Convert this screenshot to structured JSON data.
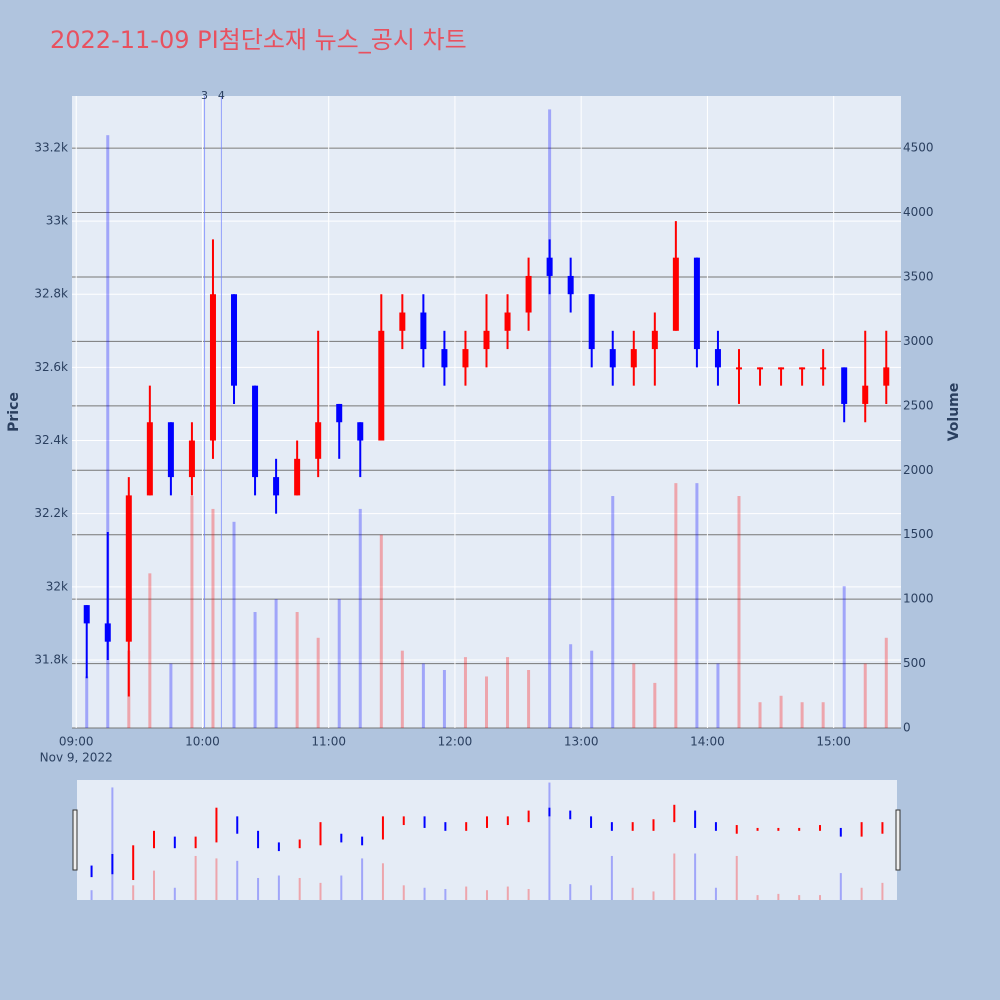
{
  "chart_data": {
    "type": "candlestick",
    "title": "2022-11-09 PI첨단소재 뉴스_공시 차트",
    "ylabel": "Price",
    "y2label": "Volume",
    "x": [
      "09:00",
      "09:10",
      "09:20",
      "09:30",
      "09:40",
      "09:50",
      "10:00",
      "10:10",
      "10:20",
      "10:30",
      "10:40",
      "10:50",
      "11:00",
      "11:10",
      "11:20",
      "11:30",
      "11:40",
      "11:50",
      "12:00",
      "12:10",
      "12:20",
      "12:30",
      "12:40",
      "12:50",
      "13:00",
      "13:10",
      "13:20",
      "13:30",
      "13:40",
      "13:50",
      "14:00",
      "14:10",
      "14:20",
      "14:30",
      "14:40",
      "14:50",
      "15:00",
      "15:10",
      "15:20"
    ],
    "open": [
      31950,
      31900,
      31850,
      32250,
      32450,
      32300,
      32400,
      32800,
      32550,
      32300,
      32250,
      32350,
      32500,
      32450,
      32400,
      32700,
      32750,
      32650,
      32600,
      32650,
      32700,
      32750,
      32900,
      32850,
      32800,
      32650,
      32600,
      32650,
      32700,
      32900,
      32650,
      32600,
      32600,
      32600,
      32600,
      32600,
      32600,
      32500,
      32550
    ],
    "high": [
      31950,
      32150,
      32300,
      32550,
      32450,
      32450,
      32950,
      32800,
      32550,
      32350,
      32400,
      32700,
      32500,
      32450,
      32800,
      32800,
      32800,
      32700,
      32700,
      32800,
      32800,
      32900,
      32950,
      32900,
      32800,
      32700,
      32700,
      32750,
      33000,
      32900,
      32700,
      32650,
      32600,
      32600,
      32600,
      32650,
      32600,
      32700,
      32700
    ],
    "low": [
      31750,
      31800,
      31700,
      32250,
      32250,
      32250,
      32350,
      32500,
      32250,
      32200,
      32250,
      32300,
      32350,
      32300,
      32400,
      32650,
      32600,
      32550,
      32550,
      32600,
      32650,
      32700,
      32800,
      32750,
      32600,
      32550,
      32550,
      32550,
      32700,
      32600,
      32550,
      32500,
      32550,
      32550,
      32550,
      32550,
      32450,
      32450,
      32500
    ],
    "close": [
      31900,
      31850,
      32250,
      32450,
      32300,
      32400,
      32800,
      32550,
      32300,
      32250,
      32350,
      32450,
      32450,
      32400,
      32700,
      32750,
      32650,
      32600,
      32650,
      32700,
      32750,
      32850,
      32850,
      32800,
      32650,
      32600,
      32650,
      32700,
      32900,
      32650,
      32600,
      32600,
      32600,
      32600,
      32600,
      32600,
      32500,
      32550,
      32600
    ],
    "volume": [
      400,
      4600,
      600,
      1200,
      500,
      1800,
      1700,
      1600,
      900,
      1000,
      900,
      700,
      1000,
      1700,
      1500,
      600,
      500,
      450,
      550,
      400,
      550,
      450,
      4800,
      650,
      600,
      1800,
      500,
      350,
      1900,
      1900,
      500,
      1800,
      200,
      250,
      200,
      200,
      1100,
      500,
      700
    ],
    "up_color": "#ff0000",
    "down_color": "#0000ff",
    "xlim": [
      "08:58",
      "15:32"
    ],
    "xticks": [
      "09:00",
      "10:00",
      "11:00",
      "12:00",
      "13:00",
      "14:00",
      "15:00"
    ],
    "x_date_label": "Nov 9, 2022",
    "ylim": [
      31614,
      33342
    ],
    "yticks": [
      {
        "value": 31800,
        "label": "31.8k"
      },
      {
        "value": 32000,
        "label": "32k"
      },
      {
        "value": 32200,
        "label": "32.2k"
      },
      {
        "value": 32400,
        "label": "32.4k"
      },
      {
        "value": 32600,
        "label": "32.6k"
      },
      {
        "value": 32800,
        "label": "32.8k"
      },
      {
        "value": 33000,
        "label": "33k"
      },
      {
        "value": 33200,
        "label": "33.2k"
      }
    ],
    "y2lim": [
      0,
      4904
    ],
    "y2ticks": [
      0,
      500,
      1000,
      1500,
      2000,
      2500,
      3000,
      3500,
      4000,
      4500
    ],
    "annotations": [
      {
        "x": "10:01",
        "text": "3"
      },
      {
        "x": "10:09",
        "text": "4"
      }
    ]
  }
}
